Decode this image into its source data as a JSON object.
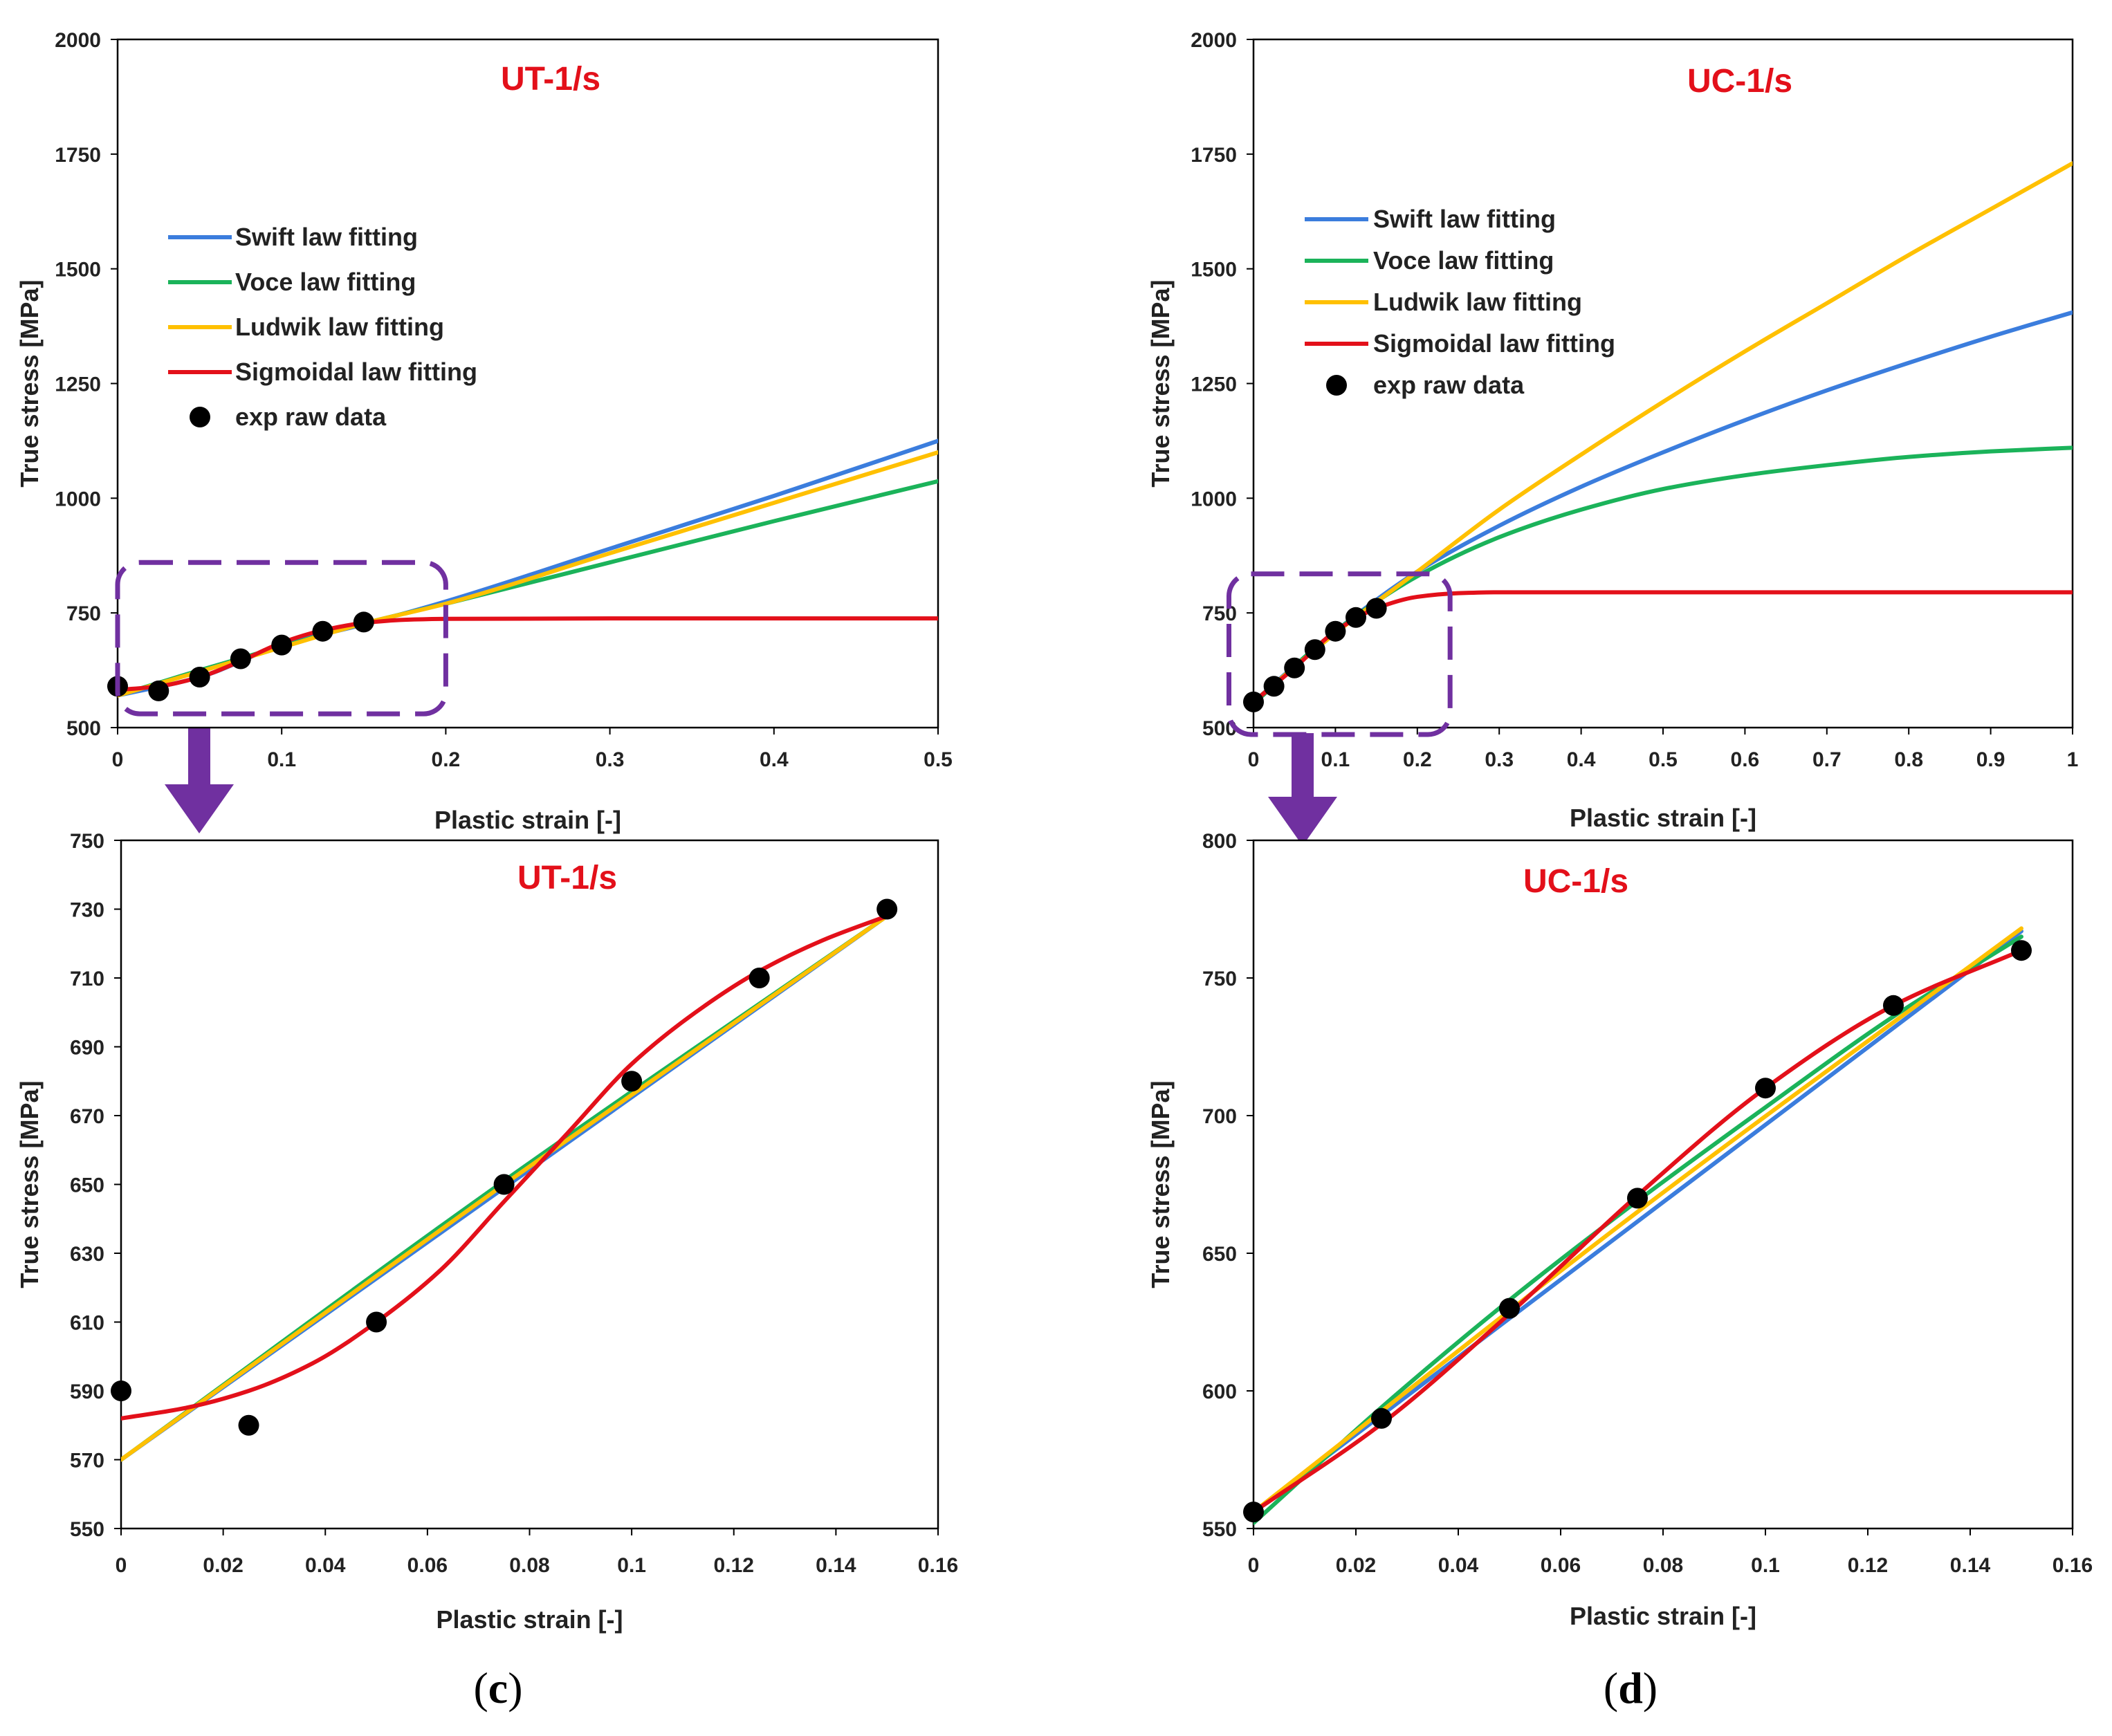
{
  "colors": {
    "swift": "#3b7ddd",
    "voce": "#1bb35a",
    "ludwik": "#ffc000",
    "sigmoidal": "#e3101a",
    "exp": "#000000",
    "title": "#e3101a",
    "zoom": "#7030a0"
  },
  "legend_labels": {
    "swift": "Swift law fitting",
    "voce": "Voce law fitting",
    "ludwik": "Ludwik law fitting",
    "sigmoidal": "Sigmoidal law fitting",
    "exp": "exp raw data"
  },
  "panel_labels": {
    "c": {
      "open": "(",
      "letter": "c",
      "close": ")"
    },
    "d": {
      "open": "(",
      "letter": "d",
      "close": ")"
    }
  },
  "chart_data": [
    {
      "id": "ut-full",
      "type": "line",
      "title": "UT-1/s",
      "xlabel": "Plastic strain [-]",
      "ylabel": "True stress [MPa]",
      "xlim": [
        0,
        0.5
      ],
      "ylim": [
        500,
        2000
      ],
      "xticks": [
        0,
        0.1,
        0.2,
        0.3,
        0.4,
        0.5
      ],
      "xtick_labels": [
        "0",
        "0.1",
        "0.2",
        "0.3",
        "0.4",
        "0.5"
      ],
      "yticks": [
        500,
        750,
        1000,
        1250,
        1500,
        1750,
        2000
      ],
      "ytick_labels": [
        "500",
        "750",
        "1000",
        "1250",
        "1500",
        "1750",
        "2000"
      ],
      "legend": true,
      "legend_position": "upper-left",
      "zoom_box": {
        "x": [
          0,
          0.2
        ],
        "y": [
          530,
          860
        ]
      },
      "series": [
        {
          "name": "Swift law fitting",
          "key": "swift",
          "x": [
            0,
            0.05,
            0.1,
            0.15,
            0.2,
            0.3,
            0.4,
            0.5
          ],
          "y": [
            570,
            610,
            680,
            725,
            775,
            890,
            1005,
            1125
          ]
        },
        {
          "name": "Voce law fitting",
          "key": "voce",
          "x": [
            0,
            0.05,
            0.1,
            0.15,
            0.2,
            0.3,
            0.4,
            0.5
          ],
          "y": [
            570,
            625,
            677,
            727,
            770,
            860,
            950,
            1037
          ]
        },
        {
          "name": "Ludwik law fitting",
          "key": "ludwik",
          "x": [
            0,
            0.05,
            0.1,
            0.15,
            0.2,
            0.3,
            0.4,
            0.5
          ],
          "y": [
            570,
            622,
            675,
            727,
            770,
            880,
            990,
            1100
          ]
        },
        {
          "name": "Sigmoidal law fitting",
          "key": "sigmoidal",
          "x": [
            0,
            0.025,
            0.05,
            0.075,
            0.1,
            0.125,
            0.15,
            0.175,
            0.2,
            0.3,
            0.4,
            0.5
          ],
          "y": [
            582,
            590,
            610,
            645,
            685,
            712,
            728,
            735,
            737,
            738,
            738,
            738
          ]
        }
      ],
      "scatter": {
        "name": "exp raw data",
        "key": "exp",
        "x": [
          0,
          0.025,
          0.05,
          0.075,
          0.1,
          0.125,
          0.15
        ],
        "y": [
          590,
          580,
          610,
          650,
          680,
          710,
          730
        ]
      }
    },
    {
      "id": "uc-full",
      "type": "line",
      "title": "UC-1/s",
      "xlabel": "Plastic strain [-]",
      "ylabel": "True stress [MPa]",
      "xlim": [
        0,
        1
      ],
      "ylim": [
        500,
        2000
      ],
      "xticks": [
        0,
        0.1,
        0.2,
        0.3,
        0.4,
        0.5,
        0.6,
        0.7,
        0.8,
        0.9,
        1
      ],
      "xtick_labels": [
        "0",
        "0.1",
        "0.2",
        "0.3",
        "0.4",
        "0.5",
        "0.6",
        "0.7",
        "0.8",
        "0.9",
        "1"
      ],
      "yticks": [
        500,
        750,
        1000,
        1250,
        1500,
        1750,
        2000
      ],
      "ytick_labels": [
        "500",
        "750",
        "1000",
        "1250",
        "1500",
        "1750",
        "2000"
      ],
      "legend": true,
      "legend_position": "upper-left",
      "zoom_box": {
        "x": [
          -0.03,
          0.24
        ],
        "y": [
          485,
          835
        ]
      },
      "series": [
        {
          "name": "Swift law fitting",
          "key": "swift",
          "x": [
            0,
            0.1,
            0.2,
            0.3,
            0.4,
            0.5,
            0.6,
            0.7,
            0.8,
            0.9,
            1
          ],
          "y": [
            556,
            710,
            840,
            940,
            1025,
            1100,
            1170,
            1235,
            1295,
            1352,
            1405
          ]
        },
        {
          "name": "Voce law fitting",
          "key": "voce",
          "x": [
            0,
            0.1,
            0.2,
            0.3,
            0.4,
            0.5,
            0.6,
            0.7,
            0.8,
            0.9,
            1
          ],
          "y": [
            552,
            710,
            830,
            915,
            975,
            1020,
            1050,
            1072,
            1090,
            1102,
            1110
          ]
        },
        {
          "name": "Ludwik law fitting",
          "key": "ludwik",
          "x": [
            0,
            0.1,
            0.2,
            0.3,
            0.4,
            0.5,
            0.6,
            0.7,
            0.8,
            0.9,
            1
          ],
          "y": [
            556,
            706,
            840,
            975,
            1095,
            1210,
            1320,
            1425,
            1530,
            1630,
            1730
          ]
        },
        {
          "name": "Sigmoidal law fitting",
          "key": "sigmoidal",
          "x": [
            0,
            0.05,
            0.1,
            0.15,
            0.2,
            0.25,
            0.3,
            0.5,
            0.75,
            1
          ],
          "y": [
            556,
            630,
            710,
            760,
            785,
            793,
            795,
            795,
            795,
            795
          ]
        }
      ],
      "scatter": {
        "name": "exp raw data",
        "key": "exp",
        "x": [
          0,
          0.025,
          0.05,
          0.075,
          0.1,
          0.125,
          0.15
        ],
        "y": [
          556,
          590,
          630,
          670,
          710,
          740,
          760
        ]
      }
    },
    {
      "id": "ut-zoom",
      "type": "line",
      "title": "UT-1/s",
      "xlabel": "Plastic strain [-]",
      "ylabel": "True stress [MPa]",
      "xlim": [
        0,
        0.16
      ],
      "ylim": [
        550,
        750
      ],
      "xticks": [
        0,
        0.02,
        0.04,
        0.06,
        0.08,
        0.1,
        0.12,
        0.14,
        0.16
      ],
      "xtick_labels": [
        "0",
        "0.02",
        "0.04",
        "0.06",
        "0.08",
        "0.1",
        "0.12",
        "0.14",
        "0.16"
      ],
      "yticks": [
        550,
        570,
        590,
        610,
        630,
        650,
        670,
        690,
        710,
        730,
        750
      ],
      "ytick_labels": [
        "550",
        "570",
        "590",
        "610",
        "630",
        "650",
        "670",
        "690",
        "710",
        "730",
        "750"
      ],
      "legend": false,
      "series": [
        {
          "name": "Swift law fitting",
          "key": "swift",
          "x": [
            0,
            0.15
          ],
          "y": [
            570,
            728
          ]
        },
        {
          "name": "Voce law fitting",
          "key": "voce",
          "x": [
            0,
            0.075,
            0.15
          ],
          "y": [
            570,
            651,
            728
          ]
        },
        {
          "name": "Ludwik law fitting",
          "key": "ludwik",
          "x": [
            0,
            0.075,
            0.15
          ],
          "y": [
            570,
            650,
            728
          ]
        },
        {
          "name": "Sigmoidal law fitting",
          "key": "sigmoidal",
          "x": [
            0,
            0.0125,
            0.025,
            0.0375,
            0.05,
            0.0625,
            0.075,
            0.0875,
            0.1,
            0.1125,
            0.125,
            0.1375,
            0.15
          ],
          "y": [
            582,
            585,
            590,
            598,
            610,
            625,
            645,
            665,
            685,
            700,
            712,
            721,
            728
          ]
        }
      ],
      "scatter": {
        "name": "exp raw data",
        "key": "exp",
        "x": [
          0,
          0.025,
          0.05,
          0.075,
          0.1,
          0.125,
          0.15
        ],
        "y": [
          590,
          580,
          610,
          650,
          680,
          710,
          730
        ]
      }
    },
    {
      "id": "uc-zoom",
      "type": "line",
      "title": "UC-1/s",
      "xlabel": "Plastic strain [-]",
      "ylabel": "True stress [MPa]",
      "xlim": [
        0,
        0.16
      ],
      "ylim": [
        550,
        800
      ],
      "xticks": [
        0,
        0.02,
        0.04,
        0.06,
        0.08,
        0.1,
        0.12,
        0.14,
        0.16
      ],
      "xtick_labels": [
        "0",
        "0.02",
        "0.04",
        "0.06",
        "0.08",
        "0.1",
        "0.12",
        "0.14",
        "0.16"
      ],
      "yticks": [
        550,
        600,
        650,
        700,
        750,
        800
      ],
      "ytick_labels": [
        "550",
        "600",
        "650",
        "700",
        "750",
        "800"
      ],
      "legend": false,
      "series": [
        {
          "name": "Swift law fitting",
          "key": "swift",
          "x": [
            0,
            0.15
          ],
          "y": [
            556,
            767
          ]
        },
        {
          "name": "Voce law fitting",
          "key": "voce",
          "x": [
            0,
            0.025,
            0.05,
            0.075,
            0.1,
            0.125,
            0.15
          ],
          "y": [
            552,
            594,
            633,
            669,
            703,
            736,
            765
          ]
        },
        {
          "name": "Ludwik law fitting",
          "key": "ludwik",
          "x": [
            0,
            0.075,
            0.15
          ],
          "y": [
            556,
            665,
            768
          ]
        },
        {
          "name": "Sigmoidal law fitting",
          "key": "sigmoidal",
          "x": [
            0,
            0.025,
            0.05,
            0.075,
            0.1,
            0.125,
            0.15
          ],
          "y": [
            556,
            588,
            628,
            671,
            710,
            740,
            760
          ]
        }
      ],
      "scatter": {
        "name": "exp raw data",
        "key": "exp",
        "x": [
          0,
          0.025,
          0.05,
          0.075,
          0.1,
          0.125,
          0.15
        ],
        "y": [
          556,
          590,
          630,
          670,
          710,
          740,
          760
        ]
      }
    }
  ]
}
